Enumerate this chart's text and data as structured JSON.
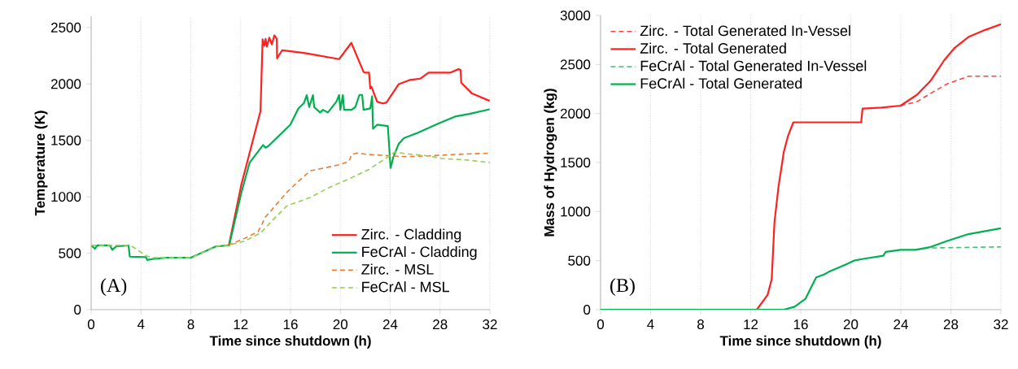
{
  "chart_data": [
    {
      "type": "line",
      "xlabel": "Time since shutdown (h)",
      "ylabel": "Temperature (K)",
      "xlim": [
        0,
        32
      ],
      "ylim": [
        0,
        2600
      ],
      "xticks": [
        0,
        4,
        8,
        12,
        16,
        20,
        24,
        28,
        32
      ],
      "yticks": [
        0,
        500,
        1000,
        1500,
        2000,
        2500
      ],
      "grid": "x",
      "legend": "bottom right",
      "annotations": [
        "(A)"
      ],
      "series": [
        {
          "name": "Zirc. - Cladding",
          "color": "#ff2020",
          "line_style": "solid",
          "x": [
            11,
            11.08,
            12.06,
            13.59,
            13.76,
            13.9,
            14.0,
            14.1,
            14.3,
            14.5,
            14.7,
            14.9,
            14.92,
            15.33,
            17.07,
            19.9,
            20.88,
            21.86,
            22.0,
            22.3,
            22.4,
            22.5,
            22.95,
            23.4,
            23.7,
            24.69,
            25.56,
            26.4,
            27.08,
            28.8,
            29.48,
            29.65,
            29.7,
            30.57,
            31.98
          ],
          "values": [
            570,
            583,
            1111,
            1759,
            2395,
            2340,
            2400,
            2330,
            2410,
            2350,
            2431,
            2400,
            2227,
            2299,
            2275,
            2220,
            2364,
            2107,
            2100,
            2100,
            1960,
            1975,
            1843,
            1827,
            1836,
            1999,
            2035,
            2047,
            2100,
            2100,
            2131,
            2124,
            2011,
            1915,
            1850
          ]
        },
        {
          "name": "FeCrAl - Cladding",
          "color": "#00b050",
          "line_style": "solid",
          "x": [
            0,
            0.3,
            0.5,
            1.5,
            1.7,
            2,
            3,
            3.1,
            4.4,
            4.5,
            5,
            6,
            8,
            9,
            10,
            11,
            11.08,
            12.06,
            12.72,
            13.8,
            14.0,
            14.2,
            15.98,
            16.63,
            17.07,
            17.3,
            17.5,
            17.8,
            17.9,
            18.37,
            18.6,
            19.0,
            19.68,
            19.9,
            20.0,
            20.2,
            20.3,
            20.9,
            21.2,
            21.53,
            21.75,
            21.86,
            22.4,
            22.55,
            22.62,
            22.95,
            23.81,
            24.03,
            24.25,
            24.69,
            25.1,
            26.2,
            27.9,
            29.2,
            30.36,
            31.98
          ],
          "values": [
            570,
            540,
            570,
            570,
            530,
            560,
            570,
            470,
            465,
            440,
            450,
            460,
            460,
            510,
            560,
            570,
            570,
            1039,
            1303,
            1459,
            1435,
            1447,
            1639,
            1783,
            1829,
            1901,
            1795,
            1901,
            1795,
            1747,
            1771,
            1747,
            1843,
            1901,
            1771,
            1901,
            1771,
            1771,
            1795,
            1903,
            1903,
            1771,
            1783,
            1891,
            1603,
            1639,
            1627,
            1255,
            1351,
            1471,
            1519,
            1567,
            1651,
            1711,
            1735,
            1775
          ]
        },
        {
          "name": "Zirc. - MSL",
          "color": "#ed7d31",
          "line_style": "dashed",
          "x": [
            11,
            12.3,
            13.4,
            14.0,
            14.2,
            15.7,
            16.6,
            17.6,
            18.7,
            19.9,
            20.7,
            20.9,
            21.3,
            22.3,
            24,
            25.3,
            27.1,
            29.2,
            32
          ],
          "values": [
            570,
            631,
            691,
            823,
            847,
            1039,
            1135,
            1231,
            1255,
            1284,
            1315,
            1375,
            1387,
            1375,
            1363,
            1356,
            1363,
            1375,
            1387
          ]
        },
        {
          "name": "FeCrAl - MSL",
          "color": "#92d050",
          "line_style": "dashed",
          "x": [
            0,
            3,
            3.3,
            4.44,
            5,
            8,
            9,
            10,
            11,
            12.3,
            13.6,
            14.4,
            15.7,
            17.5,
            19.2,
            20.7,
            22.3,
            23.8,
            24.4,
            25.3,
            27.1,
            28.1,
            30.1,
            32
          ],
          "values": [
            570,
            570,
            560,
            475,
            460,
            460,
            510,
            560,
            570,
            607,
            679,
            775,
            919,
            991,
            1087,
            1159,
            1243,
            1351,
            1399,
            1380,
            1363,
            1339,
            1327,
            1303
          ]
        }
      ]
    },
    {
      "type": "line",
      "xlabel": "Time since shutdown (h)",
      "ylabel": "Mass of Hydrogen (kg)",
      "xlim": [
        0,
        32
      ],
      "ylim": [
        0,
        3000
      ],
      "xticks": [
        0,
        4,
        8,
        12,
        16,
        20,
        24,
        28,
        32
      ],
      "yticks": [
        0,
        500,
        1000,
        1500,
        2000,
        2500,
        3000
      ],
      "grid": "x",
      "legend": "top left",
      "annotations": [
        "(B)"
      ],
      "series": [
        {
          "name": "Zirc. - Total Generated In-Vessel",
          "color": "#ff4040",
          "line_style": "dashed",
          "x": [
            23.98,
            25.28,
            26.58,
            27.67,
            29.4,
            32
          ],
          "values": [
            2080,
            2120,
            2220,
            2300,
            2380,
            2380
          ]
        },
        {
          "name": "Zirc. - Total Generated",
          "color": "#ff2020",
          "line_style": "solid",
          "x": [
            0,
            12.49,
            13.35,
            13.68,
            13.9,
            14.22,
            14.65,
            14.98,
            15.41,
            20.83,
            20.94,
            22.46,
            23.98,
            25.28,
            26.36,
            27.45,
            28.31,
            29.4,
            30.7,
            32
          ],
          "values": [
            0,
            0,
            150,
            310,
            890,
            1250,
            1610,
            1770,
            1910,
            1910,
            2050,
            2060,
            2080,
            2190,
            2330,
            2540,
            2670,
            2780,
            2850,
            2910
          ]
        },
        {
          "name": "FeCrAl - Total Generated In-Vessel",
          "color": "#40c070",
          "line_style": "dashed",
          "x": [
            25.2,
            26.3,
            26.8,
            32
          ],
          "values": [
            610,
            630,
            630,
            640
          ]
        },
        {
          "name": "FeCrAl - Total Generated",
          "color": "#00b050",
          "line_style": "solid",
          "x": [
            0,
            14.65,
            15.51,
            16.38,
            16.8,
            17.24,
            17.9,
            18.3,
            19.6,
            20.25,
            21.1,
            22.6,
            22.8,
            24,
            25.2,
            26.4,
            27.7,
            29.4,
            32
          ],
          "values": [
            0,
            0,
            30,
            110,
            220,
            330,
            360,
            390,
            460,
            500,
            520,
            550,
            590,
            610,
            610,
            640,
            700,
            770,
            830
          ]
        }
      ]
    }
  ]
}
